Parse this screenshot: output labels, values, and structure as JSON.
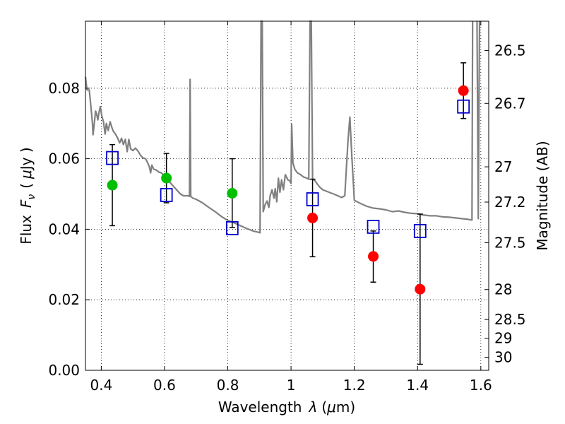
{
  "chart_data": {
    "type": "scatter",
    "xlabel": "Wavelength",
    "xlabel_symbol": "λ",
    "xlabel_unit_open": "(",
    "xlabel_unit_mu": "μ",
    "xlabel_unit_rest": "m)",
    "ylabel_text": "Flux",
    "ylabel_symbol": "F",
    "ylabel_sub": "ν",
    "ylabel_unit_open": "(",
    "ylabel_unit_mu": "μ",
    "ylabel_unit_rest": "Jy )",
    "right_ylabel": "Magnitude (AB)",
    "xlim": [
      0.35,
      1.625
    ],
    "ylim": [
      0.0,
      0.099
    ],
    "grid": true,
    "x_ticks": [
      0.4,
      0.6,
      0.8,
      1.0,
      1.2,
      1.4,
      1.6
    ],
    "x_tick_labels": [
      "0.4",
      "0.6",
      "0.8",
      "1",
      "1.2",
      "1.4",
      "1.6"
    ],
    "y_ticks": [
      0.0,
      0.02,
      0.04,
      0.06,
      0.08
    ],
    "y_tick_labels": [
      "0.00",
      "0.02",
      "0.04",
      "0.06",
      "0.08"
    ],
    "right_ticks": [
      {
        "flux": 0.0907,
        "label": "26.5"
      },
      {
        "flux": 0.0757,
        "label": "26.7"
      },
      {
        "flux": 0.0577,
        "label": "27"
      },
      {
        "flux": 0.0477,
        "label": "27.2"
      },
      {
        "flux": 0.0362,
        "label": "27.5"
      },
      {
        "flux": 0.0229,
        "label": "28"
      },
      {
        "flux": 0.0144,
        "label": "28.5"
      },
      {
        "flux": 0.0091,
        "label": "29"
      },
      {
        "flux": 0.0037,
        "label": "30"
      }
    ],
    "series": [
      {
        "marker": "circle",
        "color": "#00bf00",
        "points": [
          {
            "x": 0.435,
            "y": 0.0525,
            "ylo": 0.041,
            "yhi": 0.064
          },
          {
            "x": 0.606,
            "y": 0.0545,
            "ylo": 0.0475,
            "yhi": 0.0615
          },
          {
            "x": 0.814,
            "y": 0.0502,
            "ylo": 0.0405,
            "yhi": 0.06
          }
        ]
      },
      {
        "marker": "circle",
        "color": "#ff0000",
        "points": [
          {
            "x": 1.068,
            "y": 0.0432,
            "ylo": 0.0322,
            "yhi": 0.0542
          },
          {
            "x": 1.26,
            "y": 0.0323,
            "ylo": 0.025,
            "yhi": 0.0395
          },
          {
            "x": 1.408,
            "y": 0.023,
            "ylo": 0.0017,
            "yhi": 0.0443
          },
          {
            "x": 1.545,
            "y": 0.0793,
            "ylo": 0.0714,
            "yhi": 0.0872
          }
        ]
      },
      {
        "marker": "open-square",
        "color": "#0000cc",
        "points": [
          {
            "x": 0.435,
            "y": 0.0602
          },
          {
            "x": 0.606,
            "y": 0.0497
          },
          {
            "x": 0.814,
            "y": 0.0403
          },
          {
            "x": 1.068,
            "y": 0.0485
          },
          {
            "x": 1.26,
            "y": 0.0407
          },
          {
            "x": 1.408,
            "y": 0.0395
          },
          {
            "x": 1.545,
            "y": 0.0748
          }
        ]
      }
    ],
    "model_spectrum": {
      "color": "#808080",
      "points": [
        [
          0.35,
          0.0832
        ],
        [
          0.355,
          0.0795
        ],
        [
          0.362,
          0.0795
        ],
        [
          0.368,
          0.074
        ],
        [
          0.372,
          0.07
        ],
        [
          0.374,
          0.0668
        ],
        [
          0.378,
          0.07
        ],
        [
          0.382,
          0.0735
        ],
        [
          0.385,
          0.0728
        ],
        [
          0.389,
          0.071
        ],
        [
          0.393,
          0.0732
        ],
        [
          0.397,
          0.0748
        ],
        [
          0.402,
          0.072
        ],
        [
          0.407,
          0.0705
        ],
        [
          0.412,
          0.067
        ],
        [
          0.416,
          0.07
        ],
        [
          0.422,
          0.068
        ],
        [
          0.428,
          0.0705
        ],
        [
          0.433,
          0.069
        ],
        [
          0.438,
          0.0678
        ],
        [
          0.445,
          0.067
        ],
        [
          0.452,
          0.0658
        ],
        [
          0.458,
          0.0645
        ],
        [
          0.464,
          0.0658
        ],
        [
          0.47,
          0.064
        ],
        [
          0.476,
          0.0655
        ],
        [
          0.482,
          0.062
        ],
        [
          0.487,
          0.0655
        ],
        [
          0.493,
          0.0628
        ],
        [
          0.5,
          0.0623
        ],
        [
          0.508,
          0.063
        ],
        [
          0.516,
          0.0622
        ],
        [
          0.524,
          0.061
        ],
        [
          0.532,
          0.0602
        ],
        [
          0.54,
          0.06
        ],
        [
          0.547,
          0.0588
        ],
        [
          0.552,
          0.0577
        ],
        [
          0.556,
          0.056
        ],
        [
          0.56,
          0.0582
        ],
        [
          0.566,
          0.057
        ],
        [
          0.574,
          0.0568
        ],
        [
          0.582,
          0.0562
        ],
        [
          0.59,
          0.056
        ],
        [
          0.598,
          0.0553
        ],
        [
          0.606,
          0.0548
        ],
        [
          0.614,
          0.0536
        ],
        [
          0.622,
          0.0528
        ],
        [
          0.63,
          0.052
        ],
        [
          0.64,
          0.051
        ],
        [
          0.65,
          0.05
        ],
        [
          0.66,
          0.0495
        ],
        [
          0.668,
          0.0495
        ],
        [
          0.675,
          0.0495
        ],
        [
          0.679,
          0.0493
        ],
        [
          0.681,
          0.0825
        ],
        [
          0.683,
          0.0493
        ],
        [
          0.69,
          0.0488
        ],
        [
          0.7,
          0.0485
        ],
        [
          0.72,
          0.0475
        ],
        [
          0.74,
          0.0462
        ],
        [
          0.76,
          0.045
        ],
        [
          0.78,
          0.0436
        ],
        [
          0.8,
          0.0425
        ],
        [
          0.82,
          0.0418
        ],
        [
          0.84,
          0.041
        ],
        [
          0.86,
          0.0402
        ],
        [
          0.88,
          0.0395
        ],
        [
          0.895,
          0.0392
        ],
        [
          0.902,
          0.039
        ],
        [
          0.905,
          0.099
        ],
        [
          0.909,
          0.099
        ],
        [
          0.912,
          0.045
        ],
        [
          0.918,
          0.047
        ],
        [
          0.924,
          0.048
        ],
        [
          0.93,
          0.0462
        ],
        [
          0.934,
          0.0495
        ],
        [
          0.94,
          0.0512
        ],
        [
          0.946,
          0.0488
        ],
        [
          0.95,
          0.0515
        ],
        [
          0.955,
          0.0478
        ],
        [
          0.96,
          0.0545
        ],
        [
          0.965,
          0.0505
        ],
        [
          0.97,
          0.054
        ],
        [
          0.976,
          0.0512
        ],
        [
          0.982,
          0.0555
        ],
        [
          0.99,
          0.054
        ],
        [
          0.995,
          0.0538
        ],
        [
          1.0,
          0.053
        ],
        [
          1.002,
          0.0698
        ],
        [
          1.006,
          0.0588
        ],
        [
          1.012,
          0.057
        ],
        [
          1.02,
          0.056
        ],
        [
          1.03,
          0.0555
        ],
        [
          1.04,
          0.0548
        ],
        [
          1.05,
          0.0545
        ],
        [
          1.056,
          0.0542
        ],
        [
          1.06,
          0.099
        ],
        [
          1.064,
          0.099
        ],
        [
          1.068,
          0.0542
        ],
        [
          1.075,
          0.0538
        ],
        [
          1.09,
          0.052
        ],
        [
          1.1,
          0.0512
        ],
        [
          1.12,
          0.0505
        ],
        [
          1.14,
          0.0498
        ],
        [
          1.16,
          0.049
        ],
        [
          1.17,
          0.0495
        ],
        [
          1.18,
          0.065
        ],
        [
          1.186,
          0.0718
        ],
        [
          1.192,
          0.061
        ],
        [
          1.2,
          0.0482
        ],
        [
          1.22,
          0.0473
        ],
        [
          1.24,
          0.0465
        ],
        [
          1.26,
          0.046
        ],
        [
          1.28,
          0.0458
        ],
        [
          1.3,
          0.0455
        ],
        [
          1.32,
          0.045
        ],
        [
          1.34,
          0.0452
        ],
        [
          1.36,
          0.0448
        ],
        [
          1.38,
          0.0445
        ],
        [
          1.4,
          0.0444
        ],
        [
          1.42,
          0.044
        ],
        [
          1.44,
          0.0438
        ],
        [
          1.46,
          0.0438
        ],
        [
          1.48,
          0.0435
        ],
        [
          1.5,
          0.0434
        ],
        [
          1.52,
          0.0432
        ],
        [
          1.54,
          0.043
        ],
        [
          1.56,
          0.0428
        ],
        [
          1.572,
          0.0426
        ],
        [
          1.574,
          0.099
        ]
      ],
      "right_edge_segment": [
        [
          1.588,
          0.099
        ],
        [
          1.592,
          0.043
        ],
        [
          1.596,
          0.099
        ]
      ]
    }
  }
}
